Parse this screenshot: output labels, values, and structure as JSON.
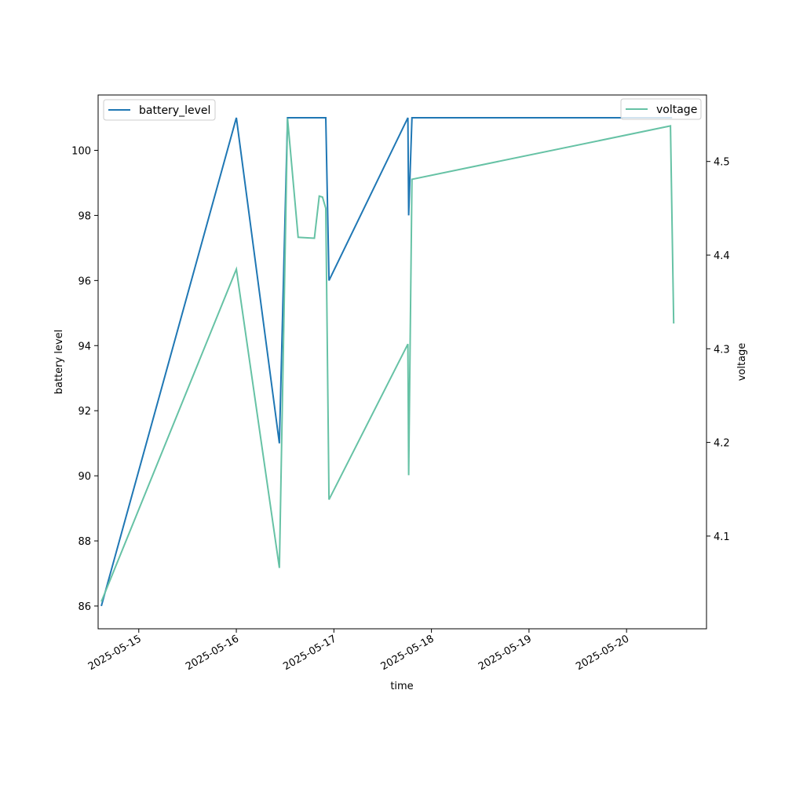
{
  "chart_data": {
    "type": "line",
    "title": "",
    "xlabel": "time",
    "ylabel_left": "battery level",
    "ylabel_right": "voltage",
    "x_type": "date",
    "xlim": [
      "2025-05-14T14:00",
      "2025-05-20T19:40"
    ],
    "ylim_left": [
      85.3,
      101.7
    ],
    "ylim_right": [
      4.001,
      4.571
    ],
    "x_ticks": [
      "2025-05-15",
      "2025-05-16",
      "2025-05-17",
      "2025-05-18",
      "2025-05-19",
      "2025-05-20"
    ],
    "y_ticks_left": [
      86,
      88,
      90,
      92,
      94,
      96,
      98,
      100
    ],
    "y_ticks_right": [
      4.1,
      4.2,
      4.3,
      4.4,
      4.5
    ],
    "grid": false,
    "series": [
      {
        "name": "battery_level",
        "axis": "left",
        "color": "#1f77b4",
        "points": [
          [
            "2025-05-14T14:48",
            86
          ],
          [
            "2025-05-16T00:00",
            101
          ],
          [
            "2025-05-16T10:36",
            91
          ],
          [
            "2025-05-16T12:36",
            101
          ],
          [
            "2025-05-16T22:00",
            101
          ],
          [
            "2025-05-16T22:48",
            96
          ],
          [
            "2025-05-17T18:12",
            101
          ],
          [
            "2025-05-17T18:24",
            98
          ],
          [
            "2025-05-17T19:12",
            101
          ],
          [
            "2025-05-20T11:12",
            101
          ]
        ]
      },
      {
        "name": "voltage",
        "axis": "right",
        "color": "#66c2a5",
        "points": [
          [
            "2025-05-14T14:48",
            4.03
          ],
          [
            "2025-05-16T00:00",
            4.385
          ],
          [
            "2025-05-16T10:36",
            4.066
          ],
          [
            "2025-05-16T12:36",
            4.546
          ],
          [
            "2025-05-16T15:12",
            4.419
          ],
          [
            "2025-05-16T19:12",
            4.418
          ],
          [
            "2025-05-16T20:24",
            4.463
          ],
          [
            "2025-05-16T21:12",
            4.462
          ],
          [
            "2025-05-16T22:00",
            4.45
          ],
          [
            "2025-05-16T22:48",
            4.139
          ],
          [
            "2025-05-17T18:12",
            4.305
          ],
          [
            "2025-05-17T18:24",
            4.165
          ],
          [
            "2025-05-17T19:12",
            4.481
          ],
          [
            "2025-05-20T10:48",
            4.538
          ],
          [
            "2025-05-20T11:36",
            4.327
          ]
        ]
      }
    ],
    "legends": [
      {
        "entries": [
          "battery_level"
        ],
        "placement": "upper-left"
      },
      {
        "entries": [
          "voltage"
        ],
        "placement": "upper-right"
      }
    ]
  }
}
